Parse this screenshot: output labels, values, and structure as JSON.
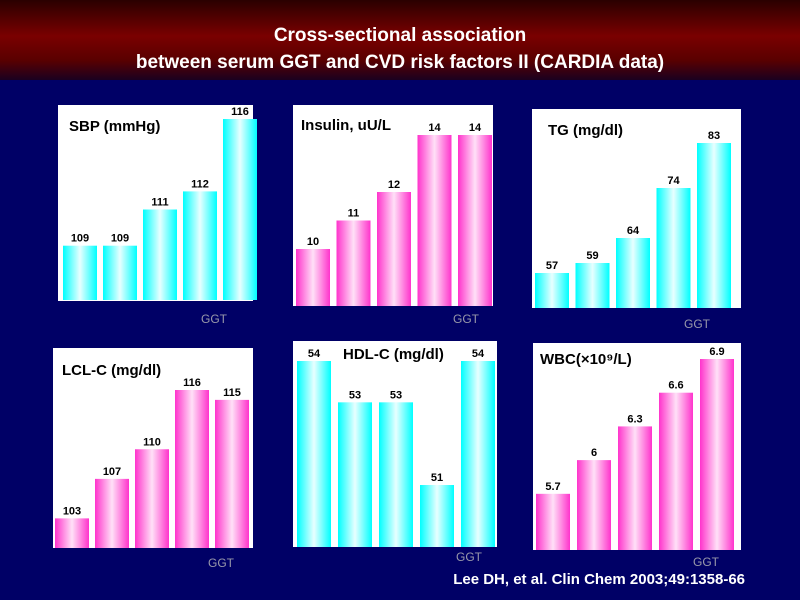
{
  "slide": {
    "title_line1": "Cross-sectional association",
    "title_line2": "between serum GGT and CVD risk factors II (CARDIA data)",
    "citation": "Lee DH, et al.  Clin Chem 2003;49:1358-66"
  },
  "colors": {
    "background": "#000066",
    "header": "#7a0000",
    "cyan_bar": "#00ffff",
    "magenta_bar": "#ff33cc"
  },
  "chart_data": [
    {
      "type": "bar",
      "title": "SBP (mmHg)",
      "xlabel": "GGT",
      "color": "cyan",
      "values": [
        109,
        109,
        111,
        112,
        116
      ],
      "value_labels": [
        "109",
        "109",
        "111",
        "112",
        "116"
      ],
      "ylim": [
        106,
        116
      ]
    },
    {
      "type": "bar",
      "title": "Insulin, uU/L",
      "xlabel": "GGT",
      "color": "magenta",
      "values": [
        10,
        11,
        12,
        14,
        14
      ],
      "value_labels": [
        "10",
        "11",
        "12",
        "14",
        "14"
      ],
      "ylim": [
        8,
        14
      ]
    },
    {
      "type": "bar",
      "title": "TG (mg/dl)",
      "xlabel": "GGT",
      "color": "cyan",
      "values": [
        57,
        59,
        64,
        74,
        83
      ],
      "value_labels": [
        "57",
        "59",
        "64",
        "74",
        "83"
      ],
      "ylim": [
        50,
        83
      ]
    },
    {
      "type": "bar",
      "title": "LCL-C (mg/dl)",
      "xlabel": "GGT",
      "color": "magenta",
      "values": [
        103,
        107,
        110,
        116,
        115
      ],
      "value_labels": [
        "103",
        "107",
        "110",
        "116",
        "115"
      ],
      "ylim": [
        100,
        116
      ]
    },
    {
      "type": "bar",
      "title": "HDL-C (mg/dl)",
      "xlabel": "GGT",
      "color": "cyan",
      "values": [
        54,
        53,
        53,
        51,
        54
      ],
      "value_labels": [
        "54",
        "53",
        "53",
        "51",
        "54"
      ],
      "ylim": [
        49.5,
        54
      ]
    },
    {
      "type": "bar",
      "title": "WBC(×10⁹/L)",
      "xlabel": "GGT",
      "color": "magenta",
      "values": [
        5.7,
        6,
        6.3,
        6.6,
        6.9
      ],
      "value_labels": [
        "5.7",
        "6",
        "6.3",
        "6.6",
        "6.9"
      ],
      "ylim": [
        5.2,
        6.9
      ]
    }
  ]
}
